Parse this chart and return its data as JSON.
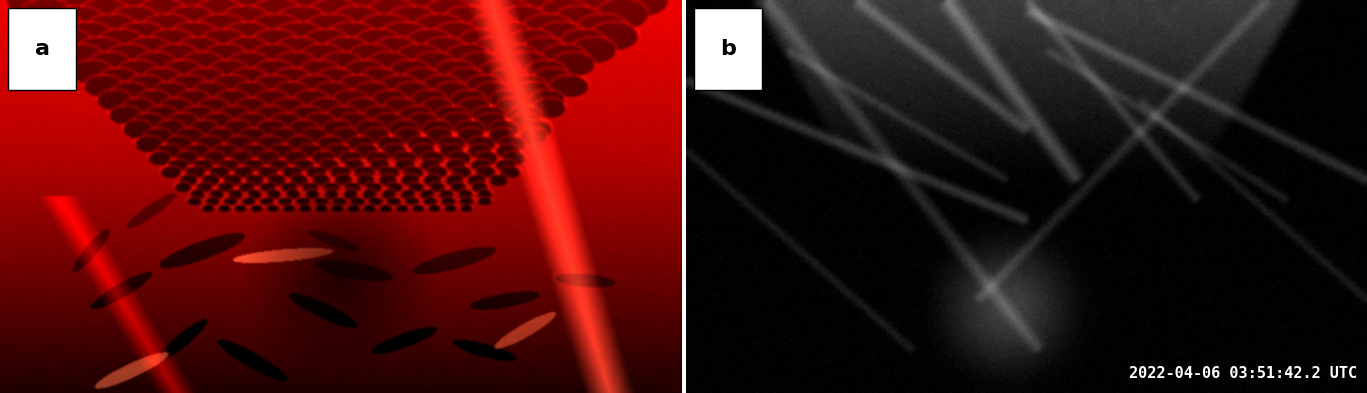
{
  "fig_width": 13.67,
  "fig_height": 3.93,
  "dpi": 100,
  "label_a": "a",
  "label_b": "b",
  "timestamp": "2022-04-06 03:51:42.2 UTC",
  "timestamp_color": "#ffffff",
  "timestamp_fontsize": 11,
  "label_fontsize": 16,
  "label_box_color": "#ffffff",
  "label_text_color": "#000000",
  "border_color": "#ffffff",
  "border_linewidth": 1.5,
  "gap_color": "#ffffff"
}
